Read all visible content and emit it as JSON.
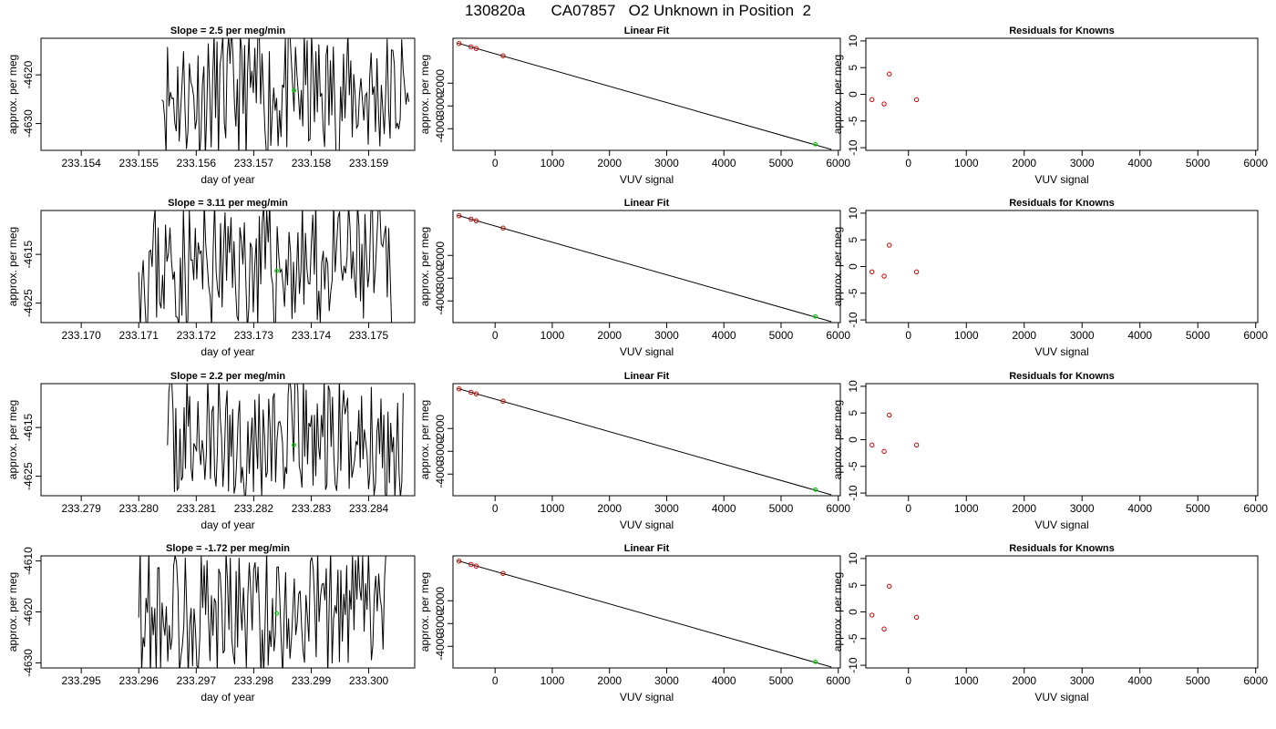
{
  "page_title": "130820a      CA07857   O2 Unknown in Position  2",
  "colors": {
    "line": "#000000",
    "known_point": "#cc0000",
    "unknown_point": "#00cc00"
  },
  "chart_data": [
    {
      "type": "line",
      "title": "Slope =  2.5  per meg/min",
      "xlabel": "day of year",
      "ylabel": "approx. per meg",
      "xlim": [
        233.1533,
        233.1598
      ],
      "ylim": [
        -4635.5,
        -4612.5
      ],
      "xticks": [
        "233.154",
        "233.155",
        "233.156",
        "233.157",
        "233.158",
        "233.159"
      ],
      "xtick_values": [
        233.154,
        233.155,
        233.156,
        233.157,
        233.158,
        233.159
      ],
      "yticks": [
        "-4620",
        "-4630"
      ],
      "ytick_values": [
        -4620,
        -4630
      ],
      "x_start": 233.1554,
      "x_end": 233.1597,
      "unknown_point": {
        "x": 233.1577,
        "y": -4623.2
      },
      "seed": 11
    },
    {
      "type": "line",
      "title": "Linear Fit",
      "xlabel": "VUV signal",
      "ylabel": "approx. per meg",
      "xlim": [
        -736,
        6036
      ],
      "ylim": [
        -4950,
        -30
      ],
      "xticks": [
        "0",
        "1000",
        "2000",
        "3000",
        "4000",
        "5000",
        "6000"
      ],
      "xtick_values": [
        0,
        1000,
        2000,
        3000,
        4000,
        5000,
        6000
      ],
      "yticks": [
        "-2000",
        "-3000",
        "-4000"
      ],
      "ytick_values": [
        -2000,
        -3000,
        -4000
      ],
      "fit_line": {
        "x": [
          -650,
          5880
        ],
        "y": [
          -245,
          -4910
        ]
      },
      "known_points": [
        {
          "x": -630,
          "y": -260
        },
        {
          "x": -420,
          "y": -410
        },
        {
          "x": -330,
          "y": -480
        },
        {
          "x": 140,
          "y": -800
        }
      ],
      "unknown_point": {
        "x": 5600,
        "y": -4680
      }
    },
    {
      "type": "scatter",
      "title": "Residuals for Knowns",
      "xlabel": "VUV signal",
      "ylabel": "approx. per meg",
      "xlim": [
        -736,
        6036
      ],
      "ylim": [
        -10.5,
        10.5
      ],
      "xticks": [
        "0",
        "1000",
        "2000",
        "3000",
        "4000",
        "5000",
        "6000"
      ],
      "xtick_values": [
        0,
        1000,
        2000,
        3000,
        4000,
        5000,
        6000
      ],
      "yticks": [
        "-10",
        "-5",
        "0",
        "5",
        "10"
      ],
      "ytick_values": [
        -10,
        -5,
        0,
        5,
        10
      ],
      "known_points": [
        {
          "x": -630,
          "y": -1.0
        },
        {
          "x": -420,
          "y": -1.8
        },
        {
          "x": -330,
          "y": 3.8
        },
        {
          "x": 140,
          "y": -1.0
        }
      ]
    },
    {
      "type": "line",
      "title": "Slope =  3.11  per meg/min",
      "xlabel": "day of year",
      "ylabel": "approx. per meg",
      "xlim": [
        233.1693,
        233.1758
      ],
      "ylim": [
        -4629,
        -4606
      ],
      "xticks": [
        "233.170",
        "233.171",
        "233.172",
        "233.173",
        "233.174",
        "233.175"
      ],
      "xtick_values": [
        233.17,
        233.171,
        233.172,
        233.173,
        233.174,
        233.175
      ],
      "yticks": [
        "-4615",
        "-4625"
      ],
      "ytick_values": [
        -4615,
        -4625
      ],
      "x_start": 233.171,
      "x_end": 233.1754,
      "unknown_point": {
        "x": 233.1734,
        "y": -4618.4
      },
      "seed": 23
    },
    {
      "type": "line",
      "title": "Linear Fit",
      "xlabel": "VUV signal",
      "ylabel": "approx. per meg",
      "xlim": [
        -736,
        6036
      ],
      "ylim": [
        -4950,
        -30
      ],
      "xticks": [
        "0",
        "1000",
        "2000",
        "3000",
        "4000",
        "5000",
        "6000"
      ],
      "xtick_values": [
        0,
        1000,
        2000,
        3000,
        4000,
        5000,
        6000
      ],
      "yticks": [
        "-2000",
        "-3000",
        "-4000"
      ],
      "ytick_values": [
        -2000,
        -3000,
        -4000
      ],
      "fit_line": {
        "x": [
          -650,
          5880
        ],
        "y": [
          -245,
          -4910
        ]
      },
      "known_points": [
        {
          "x": -630,
          "y": -260
        },
        {
          "x": -420,
          "y": -410
        },
        {
          "x": -330,
          "y": -480
        },
        {
          "x": 140,
          "y": -800
        }
      ],
      "unknown_point": {
        "x": 5600,
        "y": -4680
      }
    },
    {
      "type": "scatter",
      "title": "Residuals for Knowns",
      "xlabel": "VUV signal",
      "ylabel": "approx. per meg",
      "xlim": [
        -736,
        6036
      ],
      "ylim": [
        -10.5,
        10.5
      ],
      "xticks": [
        "0",
        "1000",
        "2000",
        "3000",
        "4000",
        "5000",
        "6000"
      ],
      "xtick_values": [
        0,
        1000,
        2000,
        3000,
        4000,
        5000,
        6000
      ],
      "yticks": [
        "-10",
        "-5",
        "0",
        "5",
        "10"
      ],
      "ytick_values": [
        -10,
        -5,
        0,
        5,
        10
      ],
      "known_points": [
        {
          "x": -630,
          "y": -1.0
        },
        {
          "x": -420,
          "y": -1.8
        },
        {
          "x": -330,
          "y": 4.0
        },
        {
          "x": 140,
          "y": -1.0
        }
      ]
    },
    {
      "type": "line",
      "title": "Slope =  2.2  per meg/min",
      "xlabel": "day of year",
      "ylabel": "approx. per meg",
      "xlim": [
        233.2783,
        233.2848
      ],
      "ylim": [
        -4629,
        -4606
      ],
      "xticks": [
        "233.279",
        "233.280",
        "233.281",
        "233.282",
        "233.283",
        "233.284"
      ],
      "xtick_values": [
        233.279,
        233.28,
        233.281,
        233.282,
        233.283,
        233.284
      ],
      "yticks": [
        "-4615",
        "-4625"
      ],
      "ytick_values": [
        -4615,
        -4625
      ],
      "x_start": 233.2805,
      "x_end": 233.2846,
      "unknown_point": {
        "x": 233.2827,
        "y": -4618.6
      },
      "seed": 37
    },
    {
      "type": "line",
      "title": "Linear Fit",
      "xlabel": "VUV signal",
      "ylabel": "approx. per meg",
      "xlim": [
        -736,
        6036
      ],
      "ylim": [
        -4950,
        -30
      ],
      "xticks": [
        "0",
        "1000",
        "2000",
        "3000",
        "4000",
        "5000",
        "6000"
      ],
      "xtick_values": [
        0,
        1000,
        2000,
        3000,
        4000,
        5000,
        6000
      ],
      "yticks": [
        "-2000",
        "-3000",
        "-4000"
      ],
      "ytick_values": [
        -2000,
        -3000,
        -4000
      ],
      "fit_line": {
        "x": [
          -650,
          5880
        ],
        "y": [
          -245,
          -4910
        ]
      },
      "known_points": [
        {
          "x": -630,
          "y": -260
        },
        {
          "x": -420,
          "y": -410
        },
        {
          "x": -330,
          "y": -480
        },
        {
          "x": 140,
          "y": -800
        }
      ],
      "unknown_point": {
        "x": 5600,
        "y": -4680
      }
    },
    {
      "type": "scatter",
      "title": "Residuals for Knowns",
      "xlabel": "VUV signal",
      "ylabel": "approx. per meg",
      "xlim": [
        -736,
        6036
      ],
      "ylim": [
        -10.5,
        10.5
      ],
      "xticks": [
        "0",
        "1000",
        "2000",
        "3000",
        "4000",
        "5000",
        "6000"
      ],
      "xtick_values": [
        0,
        1000,
        2000,
        3000,
        4000,
        5000,
        6000
      ],
      "yticks": [
        "-10",
        "-5",
        "0",
        "5",
        "10"
      ],
      "ytick_values": [
        -10,
        -5,
        0,
        5,
        10
      ],
      "known_points": [
        {
          "x": -630,
          "y": -1.0
        },
        {
          "x": -420,
          "y": -2.2
        },
        {
          "x": -330,
          "y": 4.6
        },
        {
          "x": 140,
          "y": -1.0
        }
      ]
    },
    {
      "type": "line",
      "title": "Slope =  -1.72  per meg/min",
      "xlabel": "day of year",
      "ylabel": "approx. per meg",
      "xlim": [
        233.2943,
        233.3008
      ],
      "ylim": [
        -4631,
        -4609
      ],
      "xticks": [
        "233.295",
        "233.296",
        "233.297",
        "233.298",
        "233.299",
        "233.300"
      ],
      "xtick_values": [
        233.295,
        233.296,
        233.297,
        233.298,
        233.299,
        233.3
      ],
      "yticks": [
        "-4610",
        "-4620",
        "-4630"
      ],
      "ytick_values": [
        -4610,
        -4620,
        -4630
      ],
      "x_start": 233.296,
      "x_end": 233.3003,
      "unknown_point": {
        "x": 233.2984,
        "y": -4620.3
      },
      "seed": 53
    },
    {
      "type": "line",
      "title": "Linear Fit",
      "xlabel": "VUV signal",
      "ylabel": "approx. per meg",
      "xlim": [
        -736,
        6036
      ],
      "ylim": [
        -4950,
        -30
      ],
      "xticks": [
        "0",
        "1000",
        "2000",
        "3000",
        "4000",
        "5000",
        "6000"
      ],
      "xtick_values": [
        0,
        1000,
        2000,
        3000,
        4000,
        5000,
        6000
      ],
      "yticks": [
        "-2000",
        "-3000",
        "-4000"
      ],
      "ytick_values": [
        -2000,
        -3000,
        -4000
      ],
      "fit_line": {
        "x": [
          -650,
          5880
        ],
        "y": [
          -245,
          -4910
        ]
      },
      "known_points": [
        {
          "x": -630,
          "y": -260
        },
        {
          "x": -420,
          "y": -410
        },
        {
          "x": -330,
          "y": -480
        },
        {
          "x": 140,
          "y": -800
        }
      ],
      "unknown_point": {
        "x": 5600,
        "y": -4680
      }
    },
    {
      "type": "scatter",
      "title": "Residuals for Knowns",
      "xlabel": "VUV signal",
      "ylabel": "approx. per meg",
      "xlim": [
        -736,
        6036
      ],
      "ylim": [
        -10.5,
        10.5
      ],
      "xticks": [
        "0",
        "1000",
        "2000",
        "3000",
        "4000",
        "5000",
        "6000"
      ],
      "xtick_values": [
        0,
        1000,
        2000,
        3000,
        4000,
        5000,
        6000
      ],
      "yticks": [
        "-10",
        "-5",
        "0",
        "5",
        "10"
      ],
      "ytick_values": [
        -10,
        -5,
        0,
        5,
        10
      ],
      "known_points": [
        {
          "x": -630,
          "y": -0.6
        },
        {
          "x": -420,
          "y": -3.2
        },
        {
          "x": -330,
          "y": 4.8
        },
        {
          "x": 140,
          "y": -1.0
        }
      ]
    }
  ]
}
